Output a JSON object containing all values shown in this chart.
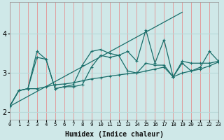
{
  "xlabel": "Humidex (Indice chaleur)",
  "background_color": "#cfe8e8",
  "grid_color_v": "#e88080",
  "grid_color_h": "#b8d8d8",
  "line_color": "#1a6e6a",
  "xlim": [
    0,
    23
  ],
  "ylim": [
    1.8,
    4.8
  ],
  "yticks": [
    2,
    3,
    4
  ],
  "line_steep": {
    "x": [
      0,
      19
    ],
    "y": [
      2.15,
      4.55
    ]
  },
  "line_volatile": [
    2.15,
    2.55,
    2.6,
    3.55,
    3.35,
    2.6,
    2.65,
    2.7,
    3.2,
    3.55,
    3.6,
    3.5,
    3.45,
    3.55,
    3.3,
    4.1,
    3.25,
    3.85,
    2.9,
    3.25,
    3.05,
    3.15,
    3.55,
    3.3
  ],
  "line_mid1": [
    2.15,
    2.55,
    2.6,
    3.4,
    3.35,
    2.6,
    2.65,
    2.65,
    2.7,
    3.15,
    3.45,
    3.4,
    3.45,
    3.05,
    3.0,
    3.25,
    3.2,
    3.2,
    2.9,
    3.3,
    3.25,
    3.25,
    3.25,
    3.3
  ],
  "line_lower": [
    2.15,
    2.55,
    2.6,
    2.6,
    2.65,
    2.7,
    2.72,
    2.75,
    2.8,
    2.85,
    2.88,
    2.92,
    2.95,
    2.98,
    3.0,
    3.05,
    3.1,
    3.15,
    2.9,
    3.0,
    3.05,
    3.1,
    3.18,
    3.28
  ],
  "xtick_labels": [
    "0",
    "1",
    "2",
    "3",
    "4",
    "5",
    "6",
    "7",
    "8",
    "9",
    "10",
    "11",
    "12",
    "13",
    "14",
    "15",
    "16",
    "17",
    "18",
    "19",
    "20",
    "21",
    "22",
    "23"
  ]
}
